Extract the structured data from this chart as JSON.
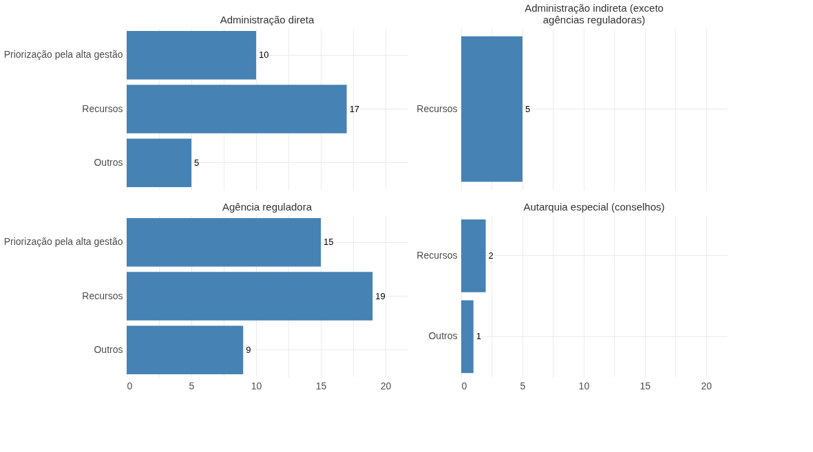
{
  "chart_data": [
    {
      "type": "bar",
      "orientation": "horizontal",
      "title": "Administração direta",
      "categories": [
        "Priorização pela alta gestão",
        "Recursos",
        "Outros"
      ],
      "values": [
        10,
        17,
        5
      ],
      "color": "#4682b4",
      "xlim": [
        0,
        21.7
      ],
      "xticks": [
        0,
        {
          "value": 2.5,
          "label": null
        },
        5,
        {
          "value": 7.5,
          "label": null
        },
        10,
        {
          "value": 12.5,
          "label": null
        },
        15,
        {
          "value": 17.5,
          "label": null
        },
        20
      ],
      "data_labels": true,
      "grid": true,
      "tick_labels": "y"
    },
    {
      "type": "bar",
      "orientation": "horizontal",
      "title": "Administração indireta (exceto agências reguladoras)",
      "categories": [
        "Recursos"
      ],
      "values": [
        5
      ],
      "color": "#4682b4",
      "xlim": [
        0,
        21.7
      ],
      "xticks": [
        0,
        {
          "value": 2.5,
          "label": null
        },
        5,
        {
          "value": 7.5,
          "label": null
        },
        10,
        {
          "value": 12.5,
          "label": null
        },
        15,
        {
          "value": 17.5,
          "label": null
        },
        20
      ],
      "data_labels": true,
      "grid": true,
      "tick_labels": "y"
    },
    {
      "type": "bar",
      "orientation": "horizontal",
      "title": "Agência reguladora",
      "categories": [
        "Priorização pela alta gestão",
        "Recursos",
        "Outros"
      ],
      "values": [
        15,
        19,
        9
      ],
      "color": "#4682b4",
      "xlim": [
        0,
        21.7
      ],
      "xticks": [
        0,
        {
          "value": 2.5,
          "label": null
        },
        5,
        {
          "value": 7.5,
          "label": null
        },
        10,
        {
          "value": 12.5,
          "label": null
        },
        15,
        {
          "value": 17.5,
          "label": null
        },
        20
      ],
      "data_labels": true,
      "grid": true
    },
    {
      "type": "bar",
      "orientation": "horizontal",
      "title": "Autarquia especial (conselhos)",
      "categories": [
        "Recursos",
        "Outros"
      ],
      "values": [
        2,
        1
      ],
      "color": "#4682b4",
      "xlim": [
        0,
        21.7
      ],
      "xticks": [
        0,
        {
          "value": 2.5,
          "label": null
        },
        5,
        {
          "value": 7.5,
          "label": null
        },
        10,
        {
          "value": 12.5,
          "label": null
        },
        15,
        {
          "value": 17.5,
          "label": null
        },
        20
      ],
      "data_labels": true,
      "grid": true
    }
  ]
}
